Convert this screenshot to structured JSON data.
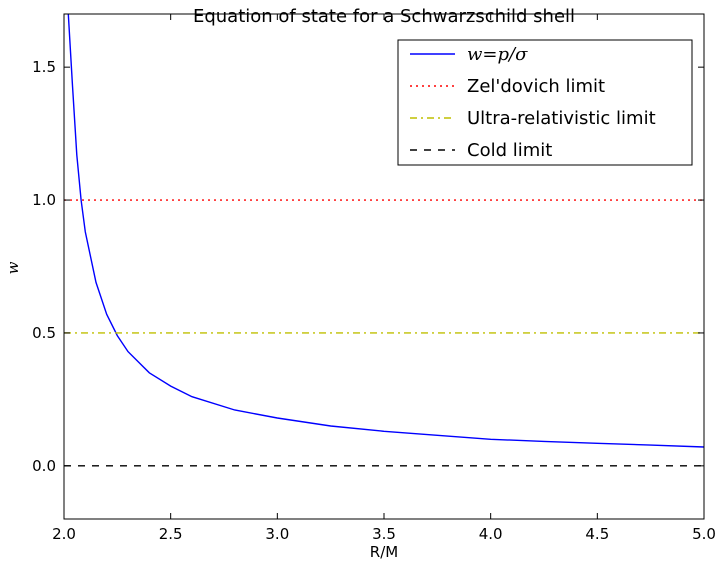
{
  "chart_data": {
    "type": "line",
    "title": "Equation of state for a Schwarzschild shell",
    "xlabel": "R/M",
    "ylabel": "w",
    "xlim": [
      2.0,
      5.0
    ],
    "ylim": [
      -0.2,
      1.7
    ],
    "x_ticks": [
      "2.0",
      "2.5",
      "3.0",
      "3.5",
      "4.0",
      "4.5",
      "5.0"
    ],
    "y_ticks": [
      "0.0",
      "0.5",
      "1.0",
      "1.5"
    ],
    "grid": false,
    "legend_position": "top-right",
    "series": [
      {
        "name": "w=p/σ",
        "style": "solid",
        "color": "#0000ff",
        "x": [
          2.02,
          2.04,
          2.06,
          2.08,
          2.1,
          2.15,
          2.2,
          2.25,
          2.3,
          2.4,
          2.5,
          2.6,
          2.8,
          3.0,
          3.25,
          3.5,
          3.75,
          4.0,
          4.25,
          4.5,
          4.75,
          5.0
        ],
        "y": [
          1.7,
          1.43,
          1.17,
          1.0,
          0.88,
          0.69,
          0.57,
          0.49,
          0.43,
          0.35,
          0.3,
          0.26,
          0.21,
          0.18,
          0.15,
          0.13,
          0.115,
          0.1,
          0.092,
          0.085,
          0.078,
          0.071
        ]
      },
      {
        "name": "Zel'dovich limit",
        "style": "dotted",
        "color": "#ff0000",
        "x": [
          2.0,
          5.0
        ],
        "y": [
          1.0,
          1.0
        ]
      },
      {
        "name": "Ultra-relativistic limit",
        "style": "dashdot",
        "color": "#bfbf00",
        "x": [
          2.0,
          5.0
        ],
        "y": [
          0.5,
          0.5
        ]
      },
      {
        "name": "Cold limit",
        "style": "dashed",
        "color": "#000000",
        "x": [
          2.0,
          5.0
        ],
        "y": [
          0.0,
          0.0
        ]
      }
    ]
  }
}
